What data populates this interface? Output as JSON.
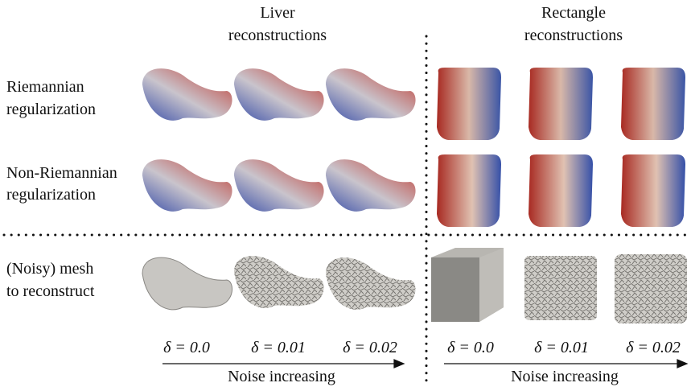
{
  "panels": [
    {
      "header": [
        "Liver",
        "reconstructions"
      ],
      "noise_labels": [
        "δ = 0.0",
        "δ = 0.01",
        "δ = 0.02"
      ],
      "axis_label": "Noise increasing"
    },
    {
      "header": [
        "Rectangle",
        "reconstructions"
      ],
      "noise_labels": [
        "δ = 0.0",
        "δ = 0.01",
        "δ = 0.02"
      ],
      "axis_label": "Noise increasing"
    }
  ],
  "row_labels": [
    [
      "Riemannian",
      "regularization"
    ],
    [
      "Non-Riemannian",
      "regularization"
    ],
    [
      "(Noisy) mesh",
      "to reconstruct"
    ]
  ]
}
